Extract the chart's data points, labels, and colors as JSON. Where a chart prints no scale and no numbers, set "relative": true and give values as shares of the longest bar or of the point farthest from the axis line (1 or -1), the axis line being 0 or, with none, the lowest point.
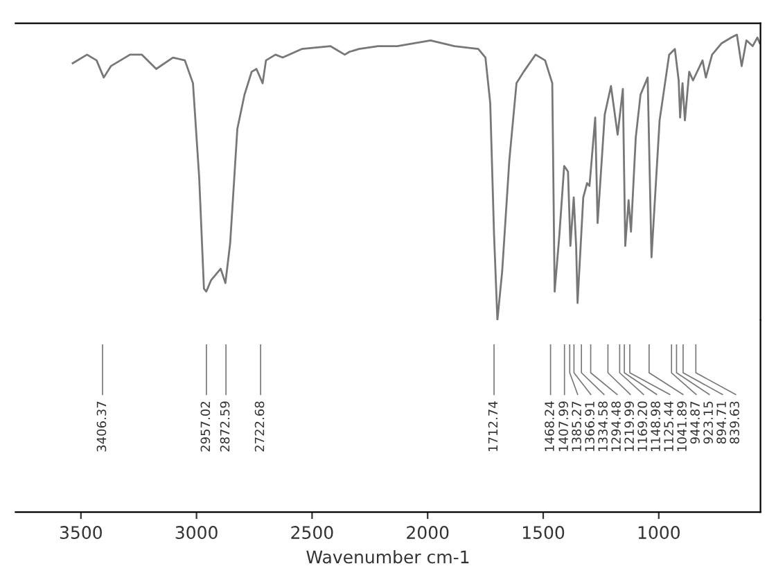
{
  "chart_data": {
    "type": "line",
    "relative": true,
    "xlabel": "Wavenumber cm-1",
    "xlim": [
      3783,
      560
    ],
    "xticks": [
      3500,
      3000,
      2500,
      2000,
      1500,
      1000
    ],
    "marker": "none",
    "line_style": "solid",
    "series": [
      {
        "color": "#777777",
        "x": [
          3535.5,
          3473.6,
          3432.3,
          3401.3,
          3370.3,
          3287.8,
          3236.2,
          3174.2,
          3102.0,
          3050.4,
          3015.3,
          2988.4,
          2967.8,
          2957.5,
          2936.8,
          2895.5,
          2874.9,
          2854.3,
          2823.3,
          2792.3,
          2761.4,
          2740.7,
          2713.9,
          2699.4,
          2658.2,
          2627.2,
          2544.6,
          2420.8,
          2358.8,
          2338.2,
          2296.9,
          2214.3,
          2131.8,
          1987.3,
          1884.0,
          1780.9,
          1749.9,
          1729.2,
          1712.7,
          1698.2,
          1677.6,
          1646.6,
          1615.6,
          1584.7,
          1533.1,
          1491.8,
          1460.8,
          1450.5,
          1429.9,
          1409.3,
          1392.7,
          1382.4,
          1367.9,
          1357.6,
          1351.4,
          1326.7,
          1310.2,
          1299.8,
          1275.0,
          1264.7,
          1233.8,
          1206.9,
          1178.0,
          1155.4,
          1145.0,
          1130.6,
          1120.2,
          1099.6,
          1078.9,
          1048.0,
          1031.5,
          996.4,
          955.1,
          930.4,
          913.9,
          907.7,
          897.3,
          887.0,
          868.4,
          851.9,
          810.6,
          796.2,
          769.3,
          728.0,
          686.8,
          662.0,
          641.4,
          620.8,
          593.9,
          573.3,
          563.0
        ],
        "values": [
          0.9,
          0.93,
          0.91,
          0.85,
          0.89,
          0.93,
          0.93,
          0.88,
          0.92,
          0.91,
          0.83,
          0.5,
          0.11,
          0.1,
          0.14,
          0.18,
          0.13,
          0.27,
          0.67,
          0.79,
          0.87,
          0.88,
          0.83,
          0.91,
          0.93,
          0.92,
          0.95,
          0.96,
          0.93,
          0.94,
          0.95,
          0.96,
          0.96,
          0.98,
          0.96,
          0.95,
          0.92,
          0.76,
          0.3,
          0.0,
          0.17,
          0.56,
          0.83,
          0.87,
          0.93,
          0.91,
          0.83,
          0.1,
          0.3,
          0.54,
          0.52,
          0.26,
          0.43,
          0.26,
          0.06,
          0.43,
          0.48,
          0.47,
          0.71,
          0.34,
          0.72,
          0.82,
          0.65,
          0.81,
          0.26,
          0.42,
          0.31,
          0.64,
          0.79,
          0.85,
          0.22,
          0.7,
          0.93,
          0.95,
          0.84,
          0.71,
          0.83,
          0.7,
          0.87,
          0.84,
          0.91,
          0.85,
          0.93,
          0.97,
          0.99,
          1.0,
          0.89,
          0.98,
          0.96,
          0.99,
          0.97
        ]
      }
    ],
    "annotations": [
      {
        "text": "3406.37",
        "x": 3406.37
      },
      {
        "text": "2957.02",
        "x": 2957.02
      },
      {
        "text": "2872.59",
        "x": 2872.59
      },
      {
        "text": "2722.68",
        "x": 2722.68
      },
      {
        "text": "1712.74",
        "x": 1712.74
      },
      {
        "text": "1468.24",
        "x": 1468.24
      },
      {
        "text": "1407.99",
        "x": 1407.99
      },
      {
        "text": "1385.27",
        "x": 1385.27
      },
      {
        "text": "1366.91",
        "x": 1366.91
      },
      {
        "text": "1334.58",
        "x": 1334.58
      },
      {
        "text": "1294.48",
        "x": 1294.48
      },
      {
        "text": "1219.99",
        "x": 1219.99
      },
      {
        "text": "1169.20",
        "x": 1169.2
      },
      {
        "text": "1148.98",
        "x": 1148.98
      },
      {
        "text": "1125.44",
        "x": 1125.44
      },
      {
        "text": "1041.89",
        "x": 1041.89
      },
      {
        "text": "944.87",
        "x": 944.87
      },
      {
        "text": "923.15",
        "x": 923.15
      },
      {
        "text": "894.71",
        "x": 894.71
      },
      {
        "text": "839.63",
        "x": 839.63
      }
    ]
  }
}
